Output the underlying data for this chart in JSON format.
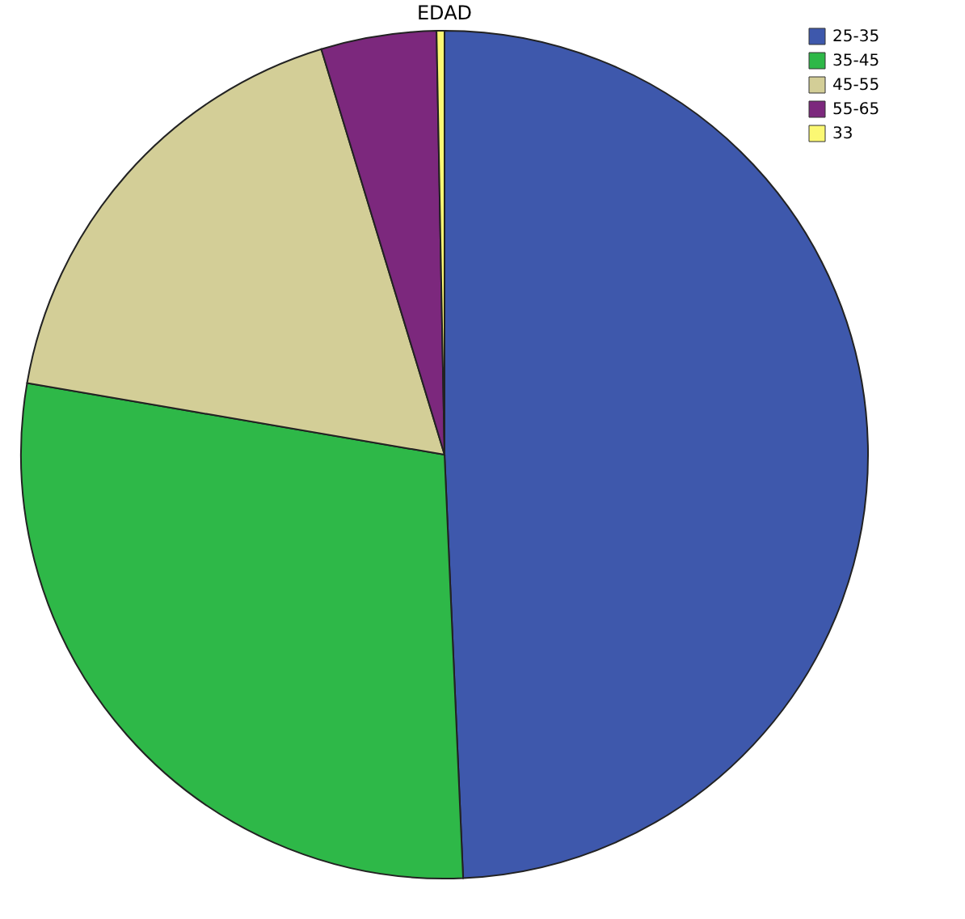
{
  "chart_data": {
    "type": "pie",
    "title": "EDAD",
    "categories": [
      "25-35",
      "35-45",
      "45-55",
      "55-65",
      "33"
    ],
    "values": [
      49.3,
      28.4,
      17.6,
      4.4,
      0.3
    ],
    "colors": [
      "#3e58ac",
      "#2eb848",
      "#d3ce97",
      "#7c287d",
      "#fbf873"
    ],
    "legend": "top right"
  }
}
